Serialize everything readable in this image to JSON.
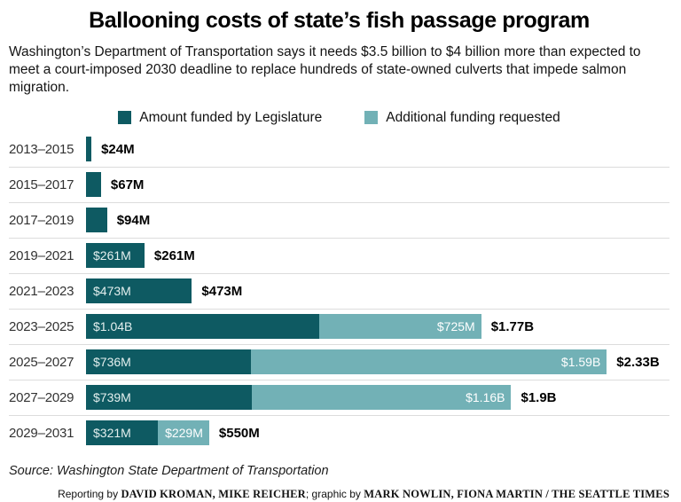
{
  "header": {
    "title": "Ballooning costs of state’s fish passage program",
    "subtitle": "Washington’s Department of Transportation says it needs $3.5 billion to $4 billion more than expected to meet a court-imposed 2030 deadline to replace hundreds of state-owned culverts that impede salmon migration."
  },
  "legend": {
    "funded_label": "Amount funded by Legislature",
    "requested_label": "Additional funding requested"
  },
  "colors": {
    "funded": "#0e5a62",
    "requested": "#72b1b6",
    "grid": "#dcdcdc"
  },
  "chart_rows": [
    {
      "period": "2013–2015",
      "funded_m": 24,
      "funded_label": "",
      "additional_m": 0,
      "additional_label": "",
      "total_label": "$24M"
    },
    {
      "period": "2015–2017",
      "funded_m": 67,
      "funded_label": "",
      "additional_m": 0,
      "additional_label": "",
      "total_label": "$67M"
    },
    {
      "period": "2017–2019",
      "funded_m": 94,
      "funded_label": "",
      "additional_m": 0,
      "additional_label": "",
      "total_label": "$94M"
    },
    {
      "period": "2019–2021",
      "funded_m": 261,
      "funded_label": "$261M",
      "additional_m": 0,
      "additional_label": "",
      "total_label": "$261M"
    },
    {
      "period": "2021–2023",
      "funded_m": 473,
      "funded_label": "$473M",
      "additional_m": 0,
      "additional_label": "",
      "total_label": "$473M"
    },
    {
      "period": "2023–2025",
      "funded_m": 1040,
      "funded_label": "$1.04B",
      "additional_m": 725,
      "additional_label": "$725M",
      "total_label": "$1.77B"
    },
    {
      "period": "2025–2027",
      "funded_m": 736,
      "funded_label": "$736M",
      "additional_m": 1590,
      "additional_label": "$1.59B",
      "total_label": "$2.33B"
    },
    {
      "period": "2027–2029",
      "funded_m": 739,
      "funded_label": "$739M",
      "additional_m": 1160,
      "additional_label": "$1.16B",
      "total_label": "$1.9B"
    },
    {
      "period": "2029–2031",
      "funded_m": 321,
      "funded_label": "$321M",
      "additional_m": 229,
      "additional_label": "$229M",
      "total_label": "$550M"
    }
  ],
  "chart_data": {
    "type": "bar",
    "orientation": "horizontal",
    "stacked": true,
    "title": "Ballooning costs of state’s fish passage program",
    "unit": "USD millions",
    "categories": [
      "2013–2015",
      "2015–2017",
      "2017–2019",
      "2019–2021",
      "2021–2023",
      "2023–2025",
      "2025–2027",
      "2027–2029",
      "2029–2031"
    ],
    "series": [
      {
        "name": "Amount funded by Legislature",
        "values": [
          24,
          67,
          94,
          261,
          473,
          1040,
          736,
          739,
          321
        ]
      },
      {
        "name": "Additional funding requested",
        "values": [
          0,
          0,
          0,
          0,
          0,
          725,
          1590,
          1160,
          229
        ]
      }
    ],
    "total_labels": [
      "$24M",
      "$67M",
      "$94M",
      "$261M",
      "$473M",
      "$1.77B",
      "$2.33B",
      "$1.9B",
      "$550M"
    ],
    "xlim_millions": [
      0,
      2390
    ],
    "legend_position": "top",
    "grid": "row-separator-lines-only"
  },
  "footer": {
    "source": "Source: Washington State Department of Transportation",
    "credits_segments": [
      {
        "text": "Reporting by ",
        "style": "plain"
      },
      {
        "text": "DAVID KROMAN, MIKE REICHER",
        "style": "caps"
      },
      {
        "text": "; graphic by ",
        "style": "plain"
      },
      {
        "text": "MARK NOWLIN, FIONA MARTIN / THE SEATTLE TIMES",
        "style": "caps"
      }
    ]
  }
}
